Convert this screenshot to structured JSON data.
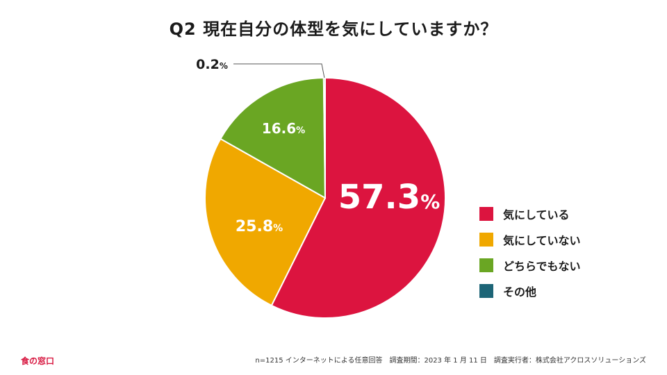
{
  "title": "Q2 現在自分の体型を気にしていますか？",
  "chart_data": {
    "type": "pie",
    "unit": "%",
    "categories": [
      "気にしている",
      "気にしていない",
      "どちらでもない",
      "その他"
    ],
    "values": [
      57.3,
      25.8,
      16.6,
      0.2
    ],
    "value_labels": [
      "57.3",
      "25.8",
      "16.6",
      "0.2"
    ],
    "colors": [
      "#dc143f",
      "#f0a800",
      "#6aa623",
      "#1d6577"
    ],
    "start_angle_deg": 0,
    "direction": "clockwise",
    "legend_position": "right"
  },
  "logo": "食の窓口",
  "footnote": "n=1215 インターネットによる任意回答　調査期間：2023 年 1 月 11 日　調査実行者：株式会社アクロスソリューションズ"
}
